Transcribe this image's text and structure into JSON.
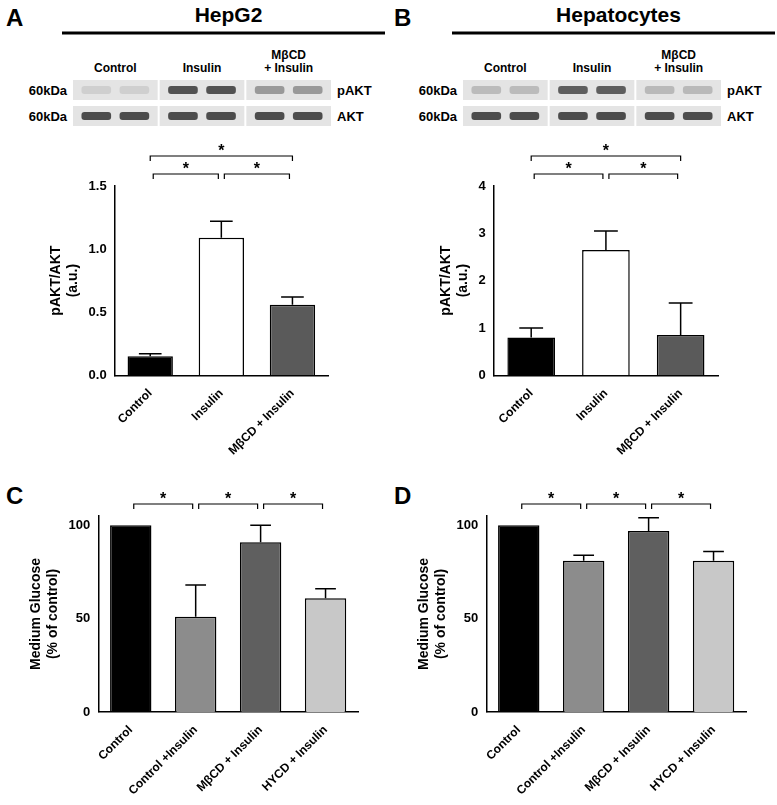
{
  "figure": {
    "panels": [
      {
        "label": "A",
        "blot": {
          "title": "HepG2",
          "lanes": [
            "Control",
            "Insulin",
            [
              "MβCD",
              "+ Insulin"
            ]
          ],
          "rows": [
            {
              "size": "60kDa",
              "protein": "pAKT"
            },
            {
              "size": "60kDa",
              "protein": "AKT"
            }
          ]
        }
      },
      {
        "label": "B",
        "blot": {
          "title": "Hepatocytes",
          "lanes": [
            "Control",
            "Insulin",
            [
              "MβCD",
              "+ Insulin"
            ]
          ],
          "rows": [
            {
              "size": "60kDa",
              "protein": "pAKT"
            },
            {
              "size": "60kDa",
              "protein": "AKT"
            }
          ]
        }
      },
      {
        "label": "C"
      },
      {
        "label": "D"
      }
    ]
  },
  "chart_data": [
    {
      "type": "bar",
      "y_label": [
        "pAKT/AKT",
        "(a.u.)"
      ],
      "categories": [
        "Control",
        "Insulin",
        "MβCD + Insulin"
      ],
      "values": [
        0.15,
        1.09,
        0.56
      ],
      "errors": [
        0.02,
        0.13,
        0.06
      ],
      "colors": [
        "#000000",
        "#ffffff",
        "#5a5a5a"
      ],
      "ylim": [
        0,
        1.5
      ],
      "yticks": [
        {
          "value": 0,
          "label": "0.0"
        },
        {
          "value": 0.5,
          "label": "0.5"
        },
        {
          "value": 1,
          "label": "1.0"
        },
        {
          "value": 1.5,
          "label": "1.5"
        }
      ],
      "grid": false,
      "annotations": [
        {
          "between": [
            "Control",
            "Insulin"
          ],
          "text": "*"
        },
        {
          "between": [
            "Insulin",
            "MβCD + Insulin"
          ],
          "text": "*"
        },
        {
          "between": [
            "Control",
            "MβCD + Insulin"
          ],
          "text": "*"
        }
      ]
    },
    {
      "type": "bar",
      "y_label": [
        "pAKT/AKT",
        "(a.u.)"
      ],
      "categories": [
        "Control",
        "Insulin",
        "MβCD + Insulin"
      ],
      "values": [
        0.8,
        2.65,
        0.85
      ],
      "errors": [
        0.2,
        0.4,
        0.68
      ],
      "colors": [
        "#000000",
        "#ffffff",
        "#5a5a5a"
      ],
      "ylim": [
        0,
        4
      ],
      "yticks": [
        0,
        1,
        2,
        3,
        4
      ],
      "grid": false,
      "annotations": [
        {
          "between": [
            "Control",
            "Insulin"
          ],
          "text": "*"
        },
        {
          "between": [
            "Insulin",
            "MβCD + Insulin"
          ],
          "text": "*"
        },
        {
          "between": [
            "Control",
            "MβCD + Insulin"
          ],
          "text": "*"
        }
      ]
    },
    {
      "type": "bar",
      "y_label": [
        "Medium Glucose",
        "(% of control)"
      ],
      "categories": [
        "Control",
        "Control +Insulin",
        "MβCD + Insulin",
        "HYCD + Insulin"
      ],
      "values": [
        100,
        51,
        91,
        61
      ],
      "errors": [
        null,
        17,
        9,
        5
      ],
      "colors": [
        "#000000",
        "#8c8c8c",
        "#5f5f5f",
        "#c8c8c8"
      ],
      "ylim": [
        0,
        105
      ],
      "yticks": [
        0,
        50,
        100
      ],
      "grid": false,
      "annotations": [
        {
          "between": [
            "Control",
            "Control +Insulin"
          ],
          "text": "*"
        },
        {
          "between": [
            "Control +Insulin",
            "MβCD + Insulin"
          ],
          "text": "*"
        },
        {
          "between": [
            "MβCD + Insulin",
            "HYCD + Insulin"
          ],
          "text": "*"
        }
      ]
    },
    {
      "type": "bar",
      "y_label": [
        "Medium Glucose",
        "(% of control)"
      ],
      "categories": [
        "Control",
        "Control +Insulin",
        "MβCD + Insulin",
        "HYCD + Insulin"
      ],
      "values": [
        100,
        81,
        97,
        81
      ],
      "errors": [
        null,
        3,
        7,
        5
      ],
      "colors": [
        "#000000",
        "#8c8c8c",
        "#5f5f5f",
        "#c8c8c8"
      ],
      "ylim": [
        0,
        105
      ],
      "yticks": [
        0,
        50,
        100
      ],
      "grid": false,
      "annotations": [
        {
          "between": [
            "Control",
            "Control +Insulin"
          ],
          "text": "*"
        },
        {
          "between": [
            "Control +Insulin",
            "MβCD + Insulin"
          ],
          "text": "*"
        },
        {
          "between": [
            "MβCD + Insulin",
            "HYCD + Insulin"
          ],
          "text": "*"
        }
      ]
    }
  ]
}
